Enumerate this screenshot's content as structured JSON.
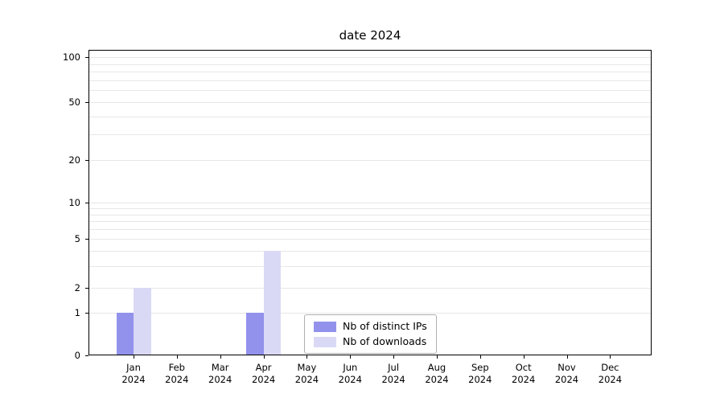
{
  "title": "date 2024",
  "chart_data": {
    "type": "bar",
    "title": "date 2024",
    "categories": [
      "Jan",
      "Feb",
      "Mar",
      "Apr",
      "May",
      "Jun",
      "Jul",
      "Aug",
      "Sep",
      "Oct",
      "Nov",
      "Dec"
    ],
    "category_year": "2024",
    "series": [
      {
        "name": "Nb of distinct IPs",
        "color": "#9292ec",
        "values": [
          1,
          0,
          0,
          1,
          0,
          0,
          0,
          0,
          0,
          0,
          0,
          0
        ]
      },
      {
        "name": "Nb of downloads",
        "color": "#d9d9f6",
        "values": [
          2,
          0,
          0,
          4,
          0,
          0,
          0,
          0,
          0,
          0,
          0,
          0
        ]
      }
    ],
    "yaxis": {
      "scale": "symlog",
      "ticks": [
        0,
        1,
        2,
        5,
        10,
        20,
        50,
        100
      ],
      "minor_gridlines": [
        3,
        4,
        6,
        7,
        8,
        9,
        30,
        40,
        60,
        70,
        80,
        90
      ],
      "ylim": [
        0,
        112
      ],
      "grid": true
    },
    "xlabel": "",
    "ylabel": "",
    "legend": {
      "position": "lower center",
      "entries": [
        "Nb of distinct IPs",
        "Nb of downloads"
      ]
    }
  }
}
